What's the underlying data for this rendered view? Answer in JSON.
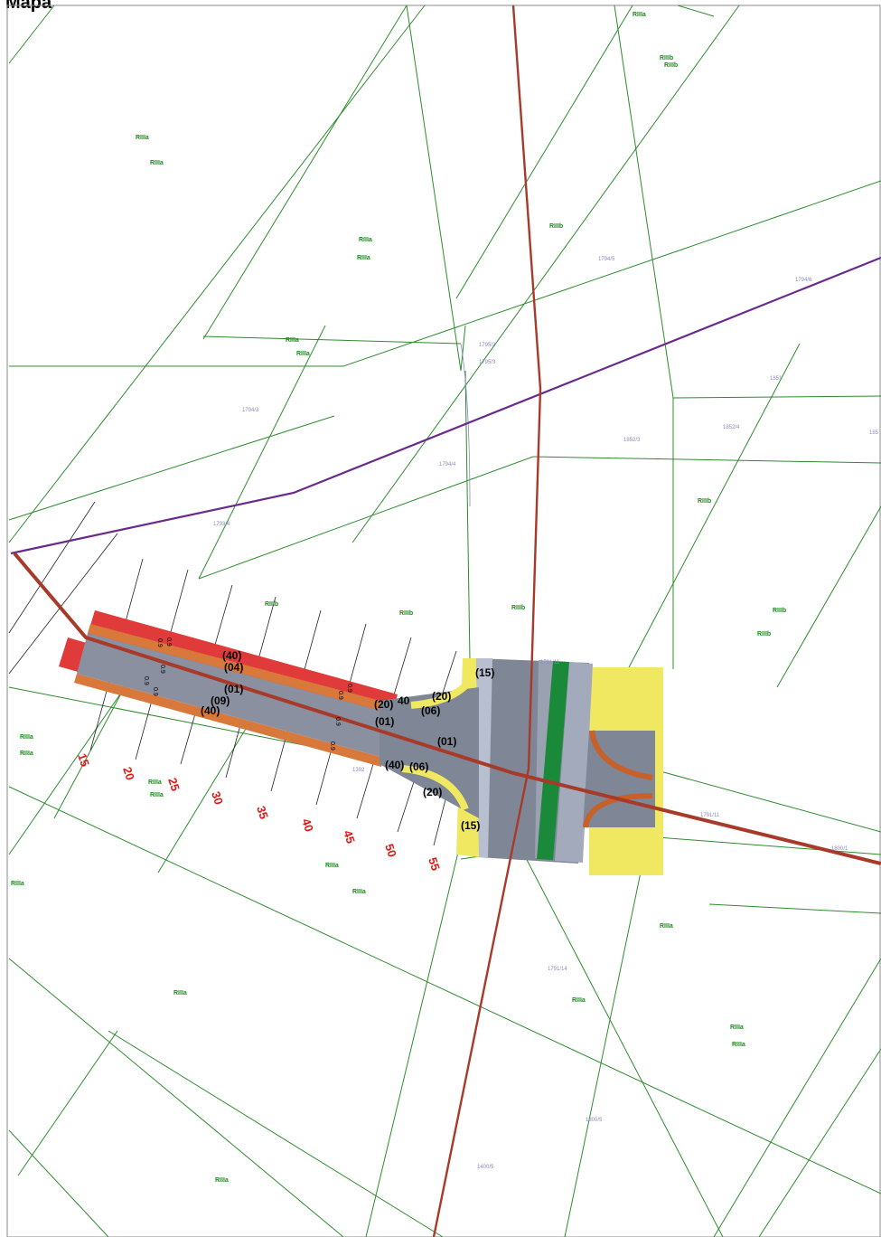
{
  "page": {
    "title": "Mapa"
  },
  "colors": {
    "parcel_line": "#2e8b2e",
    "main_road": "#a83a2a",
    "power_line": "#6a2a8a",
    "pavement": "#8a90a0",
    "pavement_dark": "#7a8090",
    "shoulder_red": "#e03a3a",
    "shoulder_orange": "#d8783a",
    "median_green": "#1a8a3a",
    "verge_yellow": "#f0e860",
    "station_text": "#e01818",
    "zone_text": "#1a8a1a"
  },
  "zones": [
    "RIIIa",
    "RIIIb",
    "RIIIb",
    "RIIIa",
    "RIIIa",
    "RIIIa",
    "RIIIa",
    "RIIIb",
    "RIIIa",
    "RIIIa",
    "RIIIb",
    "RIIIb",
    "RIIIb",
    "RIIIb",
    "RIIIb",
    "RIIIb",
    "RIIIa",
    "RIIIa",
    "RIIIa",
    "RIIIa",
    "RIIIa",
    "RIIIa",
    "RIIIa",
    "RIIIa",
    "RIIIa",
    "RIIIa",
    "RIIIa",
    "RIIIa",
    "RIIIa"
  ],
  "parcels": [
    "1794/5",
    "1794/6",
    "1795/2",
    "1795/3",
    "1794/4",
    "1794/3",
    "1793/4",
    "1851",
    "1852/4",
    "1852/3",
    "185",
    "1791/11",
    "1791/11",
    "1800/1",
    "1791/14",
    "1800/5",
    "1400/5",
    "1392"
  ],
  "stations": [
    "15",
    "20",
    "25",
    "30",
    "35",
    "40",
    "45",
    "50",
    "55"
  ],
  "dimensions": [
    "(40)",
    "(04)",
    "(01)",
    "(09)",
    "(40)",
    "(20)",
    "40",
    "(01)",
    "(20)",
    "(06)",
    "(01)",
    "(40)",
    "(06)",
    "(20)",
    "(15)",
    "(15)"
  ],
  "small_marks": [
    "0.9",
    "0.9",
    "0.9",
    "0.9",
    "0.9",
    "0.9",
    "0.9",
    "0.9",
    "0.9"
  ]
}
